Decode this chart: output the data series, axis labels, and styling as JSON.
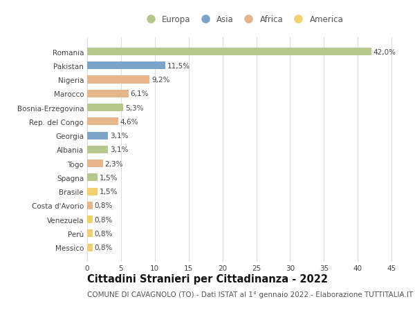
{
  "categories": [
    "Messico",
    "Perù",
    "Venezuela",
    "Costa d'Avorio",
    "Brasile",
    "Spagna",
    "Togo",
    "Albania",
    "Georgia",
    "Rep. del Congo",
    "Bosnia-Erzegovina",
    "Marocco",
    "Nigeria",
    "Pakistan",
    "Romania"
  ],
  "values": [
    0.8,
    0.8,
    0.8,
    0.8,
    1.5,
    1.5,
    2.3,
    3.1,
    3.1,
    4.6,
    5.3,
    6.1,
    9.2,
    11.5,
    42.0
  ],
  "labels": [
    "0,8%",
    "0,8%",
    "0,8%",
    "0,8%",
    "1,5%",
    "1,5%",
    "2,3%",
    "3,1%",
    "3,1%",
    "4,6%",
    "5,3%",
    "6,1%",
    "9,2%",
    "11,5%",
    "42,0%"
  ],
  "continents": [
    "America",
    "America",
    "America",
    "Africa",
    "America",
    "Europa",
    "Africa",
    "Europa",
    "Asia",
    "Africa",
    "Europa",
    "Africa",
    "Africa",
    "Asia",
    "Europa"
  ],
  "continent_colors": {
    "Europa": "#b5c98e",
    "Asia": "#7ca4c8",
    "Africa": "#e8b48a",
    "America": "#f0d070"
  },
  "legend_order": [
    "Europa",
    "Asia",
    "Africa",
    "America"
  ],
  "title": "Cittadini Stranieri per Cittadinanza - 2022",
  "subtitle": "COMUNE DI CAVAGNOLO (TO) - Dati ISTAT al 1° gennaio 2022 - Elaborazione TUTTITALIA.IT",
  "xlim": [
    0,
    46
  ],
  "xticks": [
    0,
    5,
    10,
    15,
    20,
    25,
    30,
    35,
    40,
    45
  ],
  "background_color": "#ffffff",
  "grid_color": "#dddddd",
  "bar_height": 0.55,
  "title_fontsize": 10.5,
  "subtitle_fontsize": 7.5,
  "label_fontsize": 7.5,
  "tick_fontsize": 7.5,
  "legend_fontsize": 8.5
}
